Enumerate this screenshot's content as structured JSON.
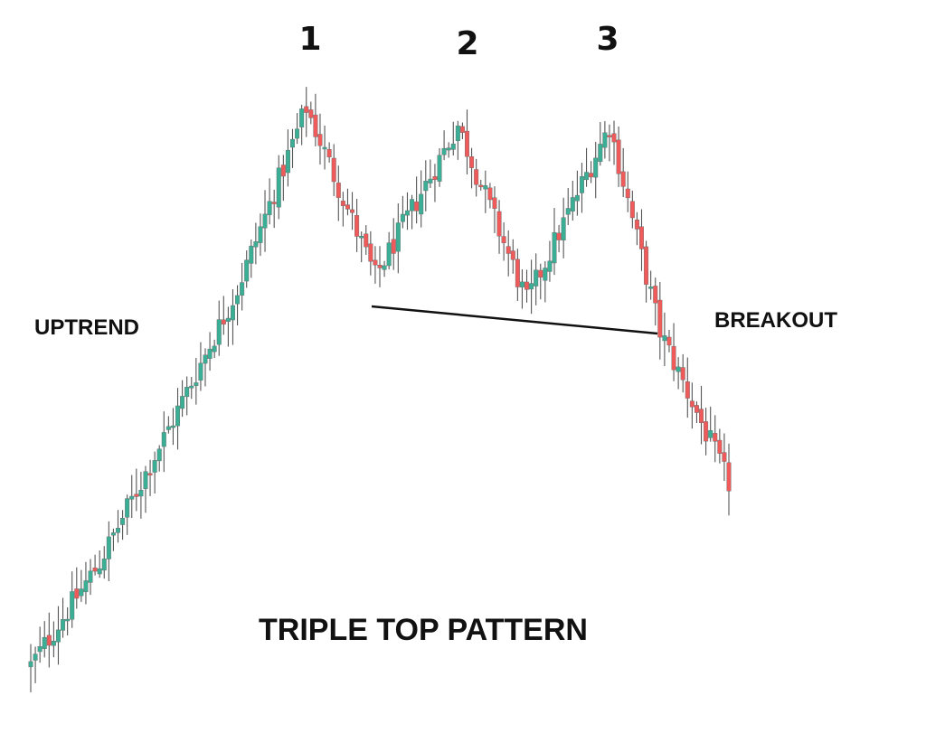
{
  "chart_data": {
    "type": "candlestick",
    "title": "TRIPLE TOP PATTERN",
    "xlabel": "",
    "ylabel": "",
    "grid": false,
    "legend": "none",
    "colors": {
      "bullish": "#3aaf96",
      "bearish": "#ef5b5b",
      "wick": "#555555",
      "neckline": "#111111",
      "text": "#111111"
    },
    "annotations": {
      "uptrend": "UPTREND",
      "breakout": "BREAKOUT"
    },
    "peaks": [
      {
        "label": "1",
        "index": 60
      },
      {
        "label": "2",
        "index": 93
      },
      {
        "label": "3",
        "index": 126
      }
    ],
    "neckline": {
      "from_index": 75,
      "to_index": 137
    },
    "price_path": [
      {
        "i": 0,
        "v": 8
      },
      {
        "i": 15,
        "v": 25
      },
      {
        "i": 30,
        "v": 47
      },
      {
        "i": 45,
        "v": 70
      },
      {
        "i": 60,
        "v": 100
      },
      {
        "i": 75,
        "v": 72
      },
      {
        "i": 93,
        "v": 97
      },
      {
        "i": 108,
        "v": 68
      },
      {
        "i": 126,
        "v": 97
      },
      {
        "i": 137,
        "v": 63
      },
      {
        "i": 152,
        "v": 38
      }
    ],
    "ylim": [
      0,
      105
    ]
  }
}
